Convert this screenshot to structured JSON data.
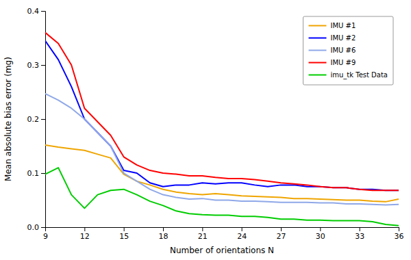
{
  "chart_data": {
    "type": "line",
    "xlabel": "Number of orientations N",
    "ylabel": "Mean absolute bias error (mg)",
    "x": [
      9,
      10,
      11,
      12,
      13,
      14,
      15,
      16,
      17,
      18,
      19,
      20,
      21,
      22,
      23,
      24,
      25,
      26,
      27,
      28,
      29,
      30,
      31,
      32,
      33,
      34,
      35,
      36
    ],
    "xlim": [
      9,
      36
    ],
    "ylim": [
      0,
      0.4
    ],
    "xticks": [
      9,
      12,
      15,
      18,
      21,
      24,
      27,
      30,
      33,
      36
    ],
    "yticks": [
      {
        "value": 0.0,
        "label": "0.0"
      },
      0.1,
      0.2,
      0.3,
      0.4
    ],
    "legend": "upper-right",
    "series": [
      {
        "name": "IMU #1",
        "color": "#EFA500",
        "values": [
          0.152,
          0.148,
          0.145,
          0.142,
          0.135,
          0.128,
          0.098,
          0.085,
          0.078,
          0.07,
          0.065,
          0.062,
          0.06,
          0.062,
          0.06,
          0.058,
          0.057,
          0.056,
          0.055,
          0.053,
          0.053,
          0.052,
          0.051,
          0.05,
          0.05,
          0.048,
          0.047,
          0.052
        ]
      },
      {
        "name": "IMU #2",
        "color": "#0000FF",
        "values": [
          0.345,
          0.31,
          0.26,
          0.2,
          0.175,
          0.15,
          0.105,
          0.1,
          0.082,
          0.075,
          0.078,
          0.078,
          0.082,
          0.08,
          0.082,
          0.082,
          0.078,
          0.075,
          0.078,
          0.078,
          0.075,
          0.075,
          0.073,
          0.073,
          0.07,
          0.07,
          0.068,
          0.068
        ]
      },
      {
        "name": "IMU #6",
        "color": "#8FA8E8",
        "values": [
          0.247,
          0.235,
          0.22,
          0.2,
          0.175,
          0.15,
          0.1,
          0.085,
          0.07,
          0.06,
          0.055,
          0.052,
          0.053,
          0.05,
          0.05,
          0.048,
          0.048,
          0.047,
          0.046,
          0.046,
          0.046,
          0.045,
          0.045,
          0.043,
          0.043,
          0.042,
          0.041,
          0.042
        ]
      },
      {
        "name": "IMU #9",
        "color": "#FF0000",
        "values": [
          0.36,
          0.34,
          0.3,
          0.22,
          0.195,
          0.17,
          0.13,
          0.115,
          0.105,
          0.1,
          0.098,
          0.095,
          0.095,
          0.092,
          0.09,
          0.09,
          0.088,
          0.085,
          0.082,
          0.08,
          0.078,
          0.075,
          0.073,
          0.073,
          0.07,
          0.068,
          0.068,
          0.068
        ]
      },
      {
        "name": "imu_tk Test Data",
        "color": "#00CC00",
        "values": [
          0.098,
          0.11,
          0.06,
          0.035,
          0.06,
          0.068,
          0.07,
          0.06,
          0.048,
          0.04,
          0.03,
          0.025,
          0.023,
          0.022,
          0.022,
          0.02,
          0.02,
          0.018,
          0.015,
          0.015,
          0.013,
          0.013,
          0.012,
          0.012,
          0.012,
          0.01,
          0.005,
          0.003
        ]
      }
    ]
  }
}
